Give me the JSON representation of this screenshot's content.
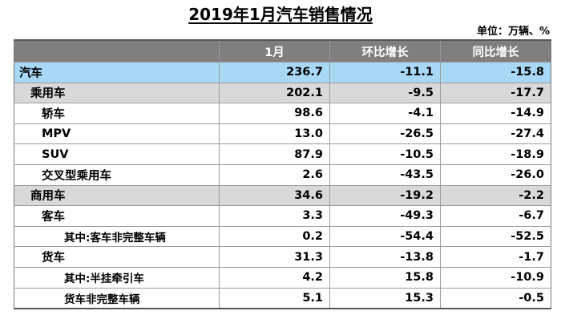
{
  "title": "2019年1月汽车销售情况",
  "unit": "单位：万辆、%",
  "chart_data": {
    "type": "table",
    "columns": [
      "",
      "1月",
      "环比增长",
      "同比增长"
    ],
    "rows": [
      {
        "label": "汽车",
        "level": 0,
        "values": [
          "236.7",
          "-11.1",
          "-15.8"
        ]
      },
      {
        "label": "乘用车",
        "level": 1,
        "values": [
          "202.1",
          "-9.5",
          "-17.7"
        ]
      },
      {
        "label": "轿车",
        "level": 2,
        "values": [
          "98.6",
          "-4.1",
          "-14.9"
        ]
      },
      {
        "label": "MPV",
        "level": 2,
        "values": [
          "13.0",
          "-26.5",
          "-27.4"
        ]
      },
      {
        "label": "SUV",
        "level": 2,
        "values": [
          "87.9",
          "-10.5",
          "-18.9"
        ]
      },
      {
        "label": "交叉型乘用车",
        "level": 2,
        "values": [
          "2.6",
          "-43.5",
          "-26.0"
        ]
      },
      {
        "label": "商用车",
        "level": 1,
        "values": [
          "34.6",
          "-19.2",
          "-2.2"
        ]
      },
      {
        "label": "客车",
        "level": 2,
        "values": [
          "3.3",
          "-49.3",
          "-6.7"
        ]
      },
      {
        "label": "其中:客车非完整车辆",
        "level": 3,
        "values": [
          "0.2",
          "-54.4",
          "-52.5"
        ]
      },
      {
        "label": "货车",
        "level": 2,
        "values": [
          "31.3",
          "-13.8",
          "-1.7"
        ]
      },
      {
        "label": "其中:半挂牵引车",
        "level": 3,
        "values": [
          "4.2",
          "15.8",
          "-10.9"
        ]
      },
      {
        "label": "货车非完整车辆",
        "level": 3,
        "values": [
          "5.1",
          "15.3",
          "-0.5"
        ]
      }
    ]
  }
}
